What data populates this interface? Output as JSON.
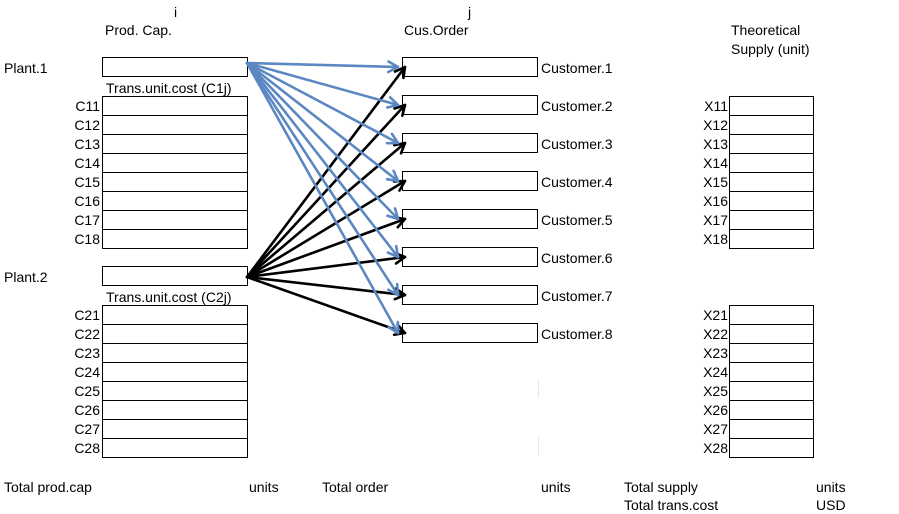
{
  "headers": {
    "i": "i",
    "prod_cap": "Prod. Cap.",
    "j": "j",
    "cus_order": "Cus.Order",
    "theoretical_line1": "Theoretical",
    "theoretical_line2": "Supply (unit)"
  },
  "plants": [
    {
      "label": "Plant.1",
      "cost_title": "Trans.unit.cost (C1j)",
      "costs": [
        "C11",
        "C12",
        "C13",
        "C14",
        "C15",
        "C16",
        "C17",
        "C18"
      ]
    },
    {
      "label": "Plant.2",
      "cost_title": "Trans.unit.cost (C2j)",
      "costs": [
        "C21",
        "C22",
        "C23",
        "C24",
        "C25",
        "C26",
        "C27",
        "C28"
      ]
    }
  ],
  "customers": [
    "Customer.1",
    "Customer.2",
    "Customer.3",
    "Customer.4",
    "Customer.5",
    "Customer.6",
    "Customer.7",
    "Customer.8"
  ],
  "supply_group1": [
    "X11",
    "X12",
    "X13",
    "X14",
    "X15",
    "X16",
    "X17",
    "X18"
  ],
  "supply_group2": [
    "X21",
    "X22",
    "X23",
    "X24",
    "X25",
    "X26",
    "X27",
    "X28"
  ],
  "footer": {
    "total_prod_cap": "Total prod.cap",
    "units1": "units",
    "total_order": "Total order",
    "units2": "units",
    "total_supply": "Total supply",
    "units3": "units",
    "total_trans_cost": "Total trans.cost",
    "usd": "USD"
  },
  "colors": {
    "plant1_arrows": "#5b87c2",
    "plant2_arrows": "#000000"
  }
}
